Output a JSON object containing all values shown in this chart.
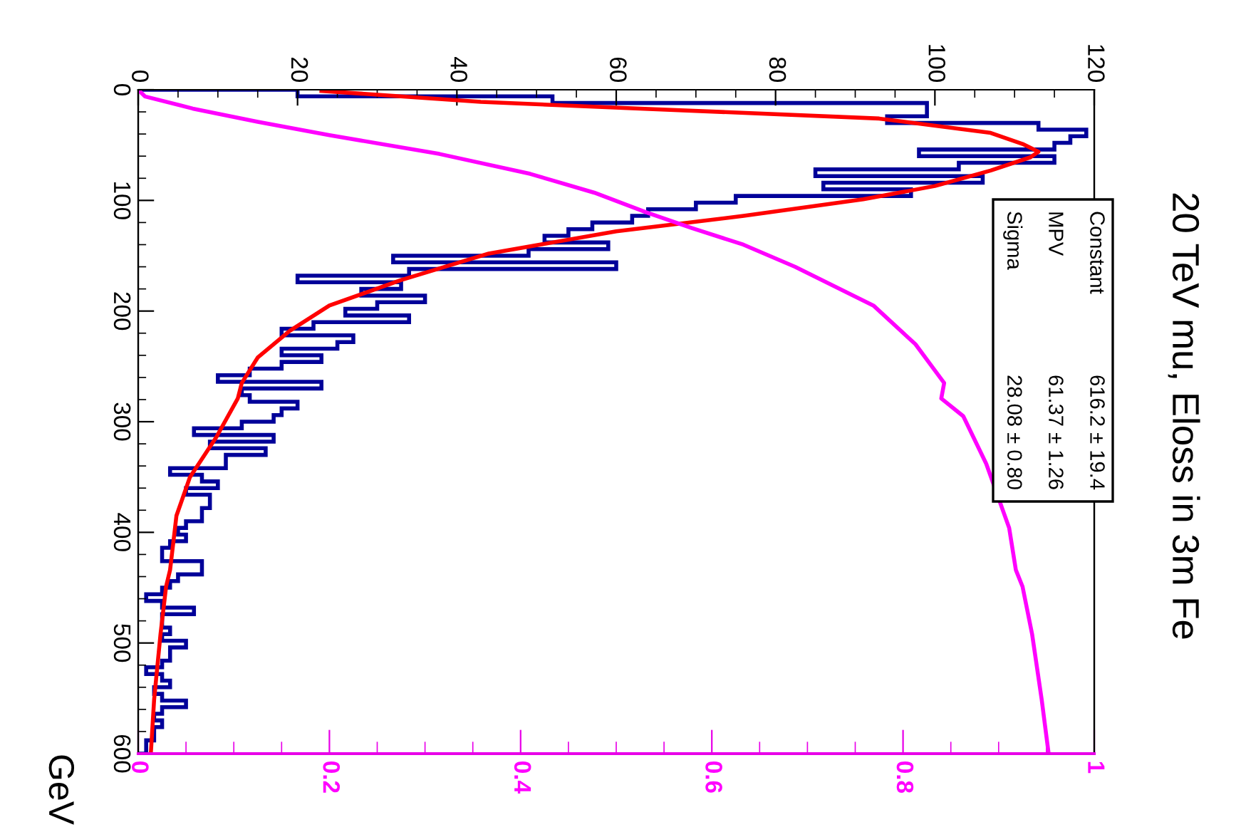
{
  "chart_data": {
    "type": "histogram",
    "orientation": "horizontal",
    "title": "20 TeV mu, Eloss in 3m Fe",
    "ylabel": "GeV",
    "color": "#000099",
    "bins": [
      0,
      6,
      12,
      18,
      24,
      30,
      36,
      42,
      48,
      54,
      60,
      66,
      72,
      78,
      84,
      90,
      96,
      102,
      108,
      114,
      120,
      126,
      132,
      138,
      144,
      150,
      156,
      162,
      168,
      174,
      180,
      186,
      192,
      198,
      204,
      210,
      216,
      222,
      228,
      234,
      240,
      246,
      252,
      258,
      264,
      270,
      276,
      282,
      288,
      294,
      300,
      306,
      312,
      318,
      324,
      330,
      336,
      342,
      348,
      354,
      360,
      366,
      372,
      378,
      384,
      390,
      396,
      402,
      408,
      414,
      420,
      426,
      432,
      438,
      444,
      450,
      456,
      462,
      468,
      474,
      480,
      486,
      492,
      498,
      504,
      510,
      516,
      522,
      528,
      534,
      540,
      546,
      552,
      558,
      564,
      570,
      576,
      582,
      588,
      594,
      600
    ],
    "values": [
      20,
      52,
      99,
      99,
      94,
      113,
      119,
      117,
      115,
      98,
      115,
      103,
      85,
      106,
      86,
      97,
      75,
      70,
      64,
      62,
      57,
      54,
      51,
      59,
      49,
      32,
      60,
      34,
      20,
      33,
      28,
      36,
      30,
      26,
      34,
      22,
      18,
      27,
      25,
      18,
      23,
      18,
      14,
      10,
      23,
      13,
      14,
      20,
      18,
      17,
      13,
      7,
      17,
      9,
      16,
      11,
      11,
      4,
      8,
      10,
      6,
      9,
      9,
      8,
      8,
      6,
      5,
      6,
      4,
      3,
      3,
      8,
      8,
      5,
      4,
      3,
      1,
      3,
      7,
      3,
      3,
      4,
      3,
      6,
      4,
      4,
      3,
      1,
      3,
      4,
      2,
      3,
      6,
      3,
      2,
      3,
      2,
      2,
      1,
      1
    ],
    "series": [
      {
        "type": "line",
        "color": "#ff0000",
        "x": [
          1,
          11,
          17,
          26,
          39,
          49,
          56,
          61,
          73,
          87,
          99,
          114,
          128,
          148,
          172,
          195,
          218,
          242,
          265,
          279,
          314,
          350,
          385,
          434,
          449,
          492,
          551,
          598
        ],
        "values": [
          23,
          43,
          63,
          93,
          107,
          111,
          113,
          112,
          107,
          100,
          91,
          76,
          60,
          44,
          33,
          24,
          19,
          15,
          13,
          12.5,
          9.8,
          6.5,
          4.8,
          4,
          3.5,
          2.8,
          2,
          1.6
        ]
      },
      {
        "type": "line",
        "axis": "x2",
        "color": "#ff00ff",
        "x": [
          0,
          6,
          17,
          29,
          41,
          58,
          76,
          93,
          111,
          125,
          140,
          160,
          195,
          230,
          265,
          279,
          295,
          338,
          396,
          434,
          449,
          492,
          551,
          598
        ],
        "values": [
          0,
          0.007,
          0.057,
          0.125,
          0.2,
          0.315,
          0.41,
          0.477,
          0.532,
          0.579,
          0.633,
          0.687,
          0.769,
          0.813,
          0.843,
          0.84,
          0.863,
          0.887,
          0.911,
          0.918,
          0.925,
          0.935,
          0.945,
          0.952
        ]
      }
    ],
    "xlim": [
      0,
      120
    ],
    "xticks": [
      0,
      20,
      40,
      60,
      80,
      100,
      120
    ],
    "ylim": [
      600,
      0
    ],
    "yticks": [
      0,
      100,
      200,
      300,
      400,
      500,
      600
    ],
    "x2lim": [
      0,
      1
    ],
    "x2ticks": [
      0,
      0.2,
      0.4,
      0.6,
      0.8,
      1
    ],
    "annotations": [
      "Constant",
      "616.2 ± 19.4",
      "MPV",
      "61.37 ± 1.26",
      "Sigma",
      "28.08 ± 0.80"
    ]
  }
}
